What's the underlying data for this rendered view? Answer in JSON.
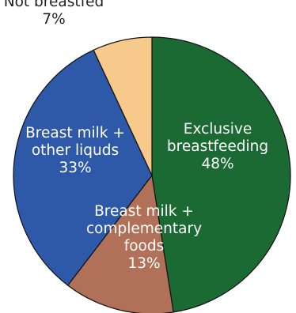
{
  "chart_data": {
    "type": "pie",
    "start_angle_deg": 0,
    "direction": "clockwise",
    "slices": [
      {
        "label_lines": [
          "Exclusive",
          "breastfeeding",
          "48%"
        ],
        "value": 48,
        "color": "#1b6a33",
        "text_color": "#ffffff"
      },
      {
        "label_lines": [
          "Breast milk +",
          "complementary",
          "foods",
          "13%"
        ],
        "value": 13,
        "color": "#b07158",
        "text_color": "#ffffff"
      },
      {
        "label_lines": [
          "Breast milk +",
          "other liquds",
          "33%"
        ],
        "value": 33,
        "color": "#2e58a8",
        "text_color": "#ffffff"
      },
      {
        "label_lines": [
          "Not breastfed",
          "7%"
        ],
        "value": 7,
        "color": "#f7c98b",
        "text_color": "#222222"
      }
    ]
  }
}
